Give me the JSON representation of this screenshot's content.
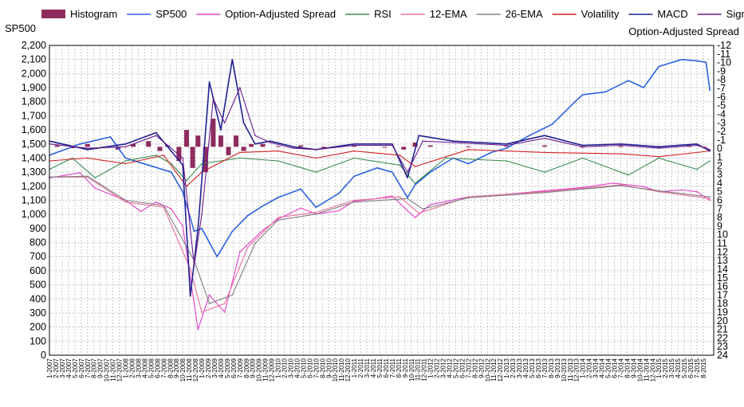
{
  "chart_data": {
    "type": "line",
    "title": "",
    "left_axis": {
      "title": "SP500",
      "ticks": [
        "2,200",
        "2,100",
        "2,000",
        "1,900",
        "1,800",
        "1,700",
        "1,600",
        "1,500",
        "1,400",
        "1,300",
        "1,200",
        "1,100",
        "1,000",
        "900",
        "800",
        "700",
        "600",
        "500",
        "400",
        "300",
        "200",
        "100",
        "0"
      ],
      "range": [
        0,
        2200
      ]
    },
    "right_axis": {
      "title": "Option-Adjusted Spread",
      "ticks": [
        "-12",
        "-11",
        "-10",
        "-9",
        "-8",
        "-7",
        "-6",
        "-5",
        "-4",
        "-3",
        "-2",
        "-1",
        "0",
        "1",
        "2",
        "3",
        "4",
        "5",
        "6",
        "7",
        "8",
        "9",
        "10",
        "11",
        "12",
        "13",
        "14",
        "15",
        "16",
        "17",
        "18",
        "19",
        "20",
        "21",
        "22",
        "23",
        "24"
      ],
      "range": [
        -12,
        24
      ],
      "inverted": true
    },
    "x_ticks": [
      "1-2007",
      "3-2007",
      "5-2007",
      "7-2007",
      "9-2007",
      "11-2007",
      "1-2008",
      "3-2008",
      "5-2008",
      "7-2008",
      "9-2008",
      "11-2008",
      "1-2009",
      "3-2009",
      "5-2009",
      "7-2009",
      "9-2009",
      "11-2009",
      "1-2010",
      "3-2010",
      "5-2010",
      "7-2010",
      "9-2010",
      "11-2010",
      "1-2011",
      "3-2011",
      "5-2011",
      "7-2011",
      "9-2011",
      "11-2011",
      "1-2012",
      "3-2012",
      "5-2012",
      "7-2012",
      "9-2012",
      "11-2012",
      "1-2013",
      "3-2013",
      "5-2013",
      "7-2013",
      "9-2013",
      "11-2013",
      "1-2014",
      "3-2014",
      "5-2014",
      "7-2014",
      "9-2014",
      "11-2014",
      "1-2015",
      "3-2015",
      "5-2015",
      "7-2015"
    ],
    "x_ticks_b": [
      "2-2007",
      "4-2007",
      "6-2007",
      "8-2007",
      "10-2007",
      "12-2007",
      "2-2008",
      "4-2008",
      "6-2008",
      "8-2008",
      "10-2008",
      "12-2008",
      "2-2009",
      "4-2009",
      "6-2009",
      "8-2009",
      "10-2009",
      "12-2009",
      "2-2010",
      "4-2010",
      "6-2010",
      "8-2010",
      "10-2010",
      "12-2010",
      "2-2011",
      "4-2011",
      "6-2011",
      "8-2011",
      "10-2011",
      "12-2011",
      "2-2012",
      "4-2012",
      "6-2012",
      "8-2012",
      "10-2012",
      "12-2012",
      "2-2013",
      "4-2013",
      "6-2013",
      "8-2013",
      "10-2013",
      "12-2013",
      "2-2014",
      "4-2014",
      "6-2014",
      "8-2014",
      "10-2014",
      "12-2014",
      "2-2015",
      "4-2015",
      "6-2015",
      "8-2015"
    ],
    "legend": [
      {
        "name": "Histogram",
        "color": "#8e2c5e",
        "kind": "bar"
      },
      {
        "name": "SP500",
        "color": "#2b62e0",
        "kind": "line"
      },
      {
        "name": "Option-Adjusted Spread",
        "color": "#e040c8",
        "kind": "line"
      },
      {
        "name": "RSI",
        "color": "#3a8a50",
        "kind": "line"
      },
      {
        "name": "12-EMA",
        "color": "#e6709a",
        "kind": "line"
      },
      {
        "name": "26-EMA",
        "color": "#808080",
        "kind": "line"
      },
      {
        "name": "Volatility",
        "color": "#d02020",
        "kind": "line"
      },
      {
        "name": "MACD",
        "color": "#202090",
        "kind": "line"
      },
      {
        "name": "Signal",
        "color": "#6a1a8a",
        "kind": "line"
      }
    ],
    "grid": true,
    "legend_position": "top",
    "series": [
      {
        "name": "SP500",
        "axis": "left",
        "x": [
          2007.0,
          2007.4,
          2007.8,
          2008.0,
          2008.3,
          2008.6,
          2008.75,
          2008.9,
          2009.0,
          2009.2,
          2009.4,
          2009.6,
          2009.8,
          2010.0,
          2010.3,
          2010.5,
          2010.8,
          2011.0,
          2011.3,
          2011.5,
          2011.7,
          2011.8,
          2012.0,
          2012.3,
          2012.5,
          2012.8,
          2013.0,
          2013.3,
          2013.6,
          2013.9,
          2014.0,
          2014.3,
          2014.6,
          2014.8,
          2015.0,
          2015.3,
          2015.5,
          2015.62,
          2015.67
        ],
        "y": [
          1420,
          1500,
          1550,
          1400,
          1350,
          1300,
          1160,
          880,
          900,
          700,
          880,
          990,
          1060,
          1120,
          1180,
          1050,
          1150,
          1270,
          1330,
          1300,
          1120,
          1210,
          1300,
          1400,
          1360,
          1440,
          1470,
          1560,
          1640,
          1800,
          1850,
          1870,
          1950,
          1900,
          2050,
          2100,
          2090,
          2080,
          1880
        ]
      },
      {
        "name": "Option-Adjusted Spread",
        "axis": "right",
        "x": [
          2007.0,
          2007.4,
          2007.6,
          2008.0,
          2008.2,
          2008.4,
          2008.6,
          2008.75,
          2008.85,
          2008.95,
          2009.1,
          2009.3,
          2009.5,
          2009.8,
          2010.0,
          2010.3,
          2010.5,
          2010.8,
          2011.0,
          2011.3,
          2011.5,
          2011.7,
          2011.8,
          2012.0,
          2012.5,
          2013.0,
          2013.5,
          2014.0,
          2014.4,
          2014.8,
          2015.0,
          2015.3,
          2015.5,
          2015.67
        ],
        "y": [
          3.4,
          2.8,
          4.6,
          6.0,
          7.3,
          6.2,
          7.0,
          9.0,
          15.0,
          21.0,
          17.0,
          19.0,
          12.0,
          9.5,
          8.2,
          6.9,
          7.6,
          7.2,
          6.1,
          5.8,
          5.5,
          7.2,
          8.0,
          6.5,
          5.6,
          5.3,
          4.9,
          4.5,
          4.0,
          4.4,
          5.0,
          4.8,
          5.0,
          6.0
        ]
      },
      {
        "name": "12-EMA",
        "axis": "right",
        "x": [
          2007.0,
          2007.5,
          2008.0,
          2008.5,
          2008.85,
          2009.0,
          2009.3,
          2009.6,
          2010.0,
          2010.5,
          2011.0,
          2011.6,
          2011.85,
          2012.5,
          2013.5,
          2014.5,
          2015.0,
          2015.67
        ],
        "y": [
          3.3,
          3.3,
          6.2,
          6.8,
          14.0,
          19.0,
          18.0,
          11.5,
          8.0,
          7.4,
          6.0,
          5.6,
          7.5,
          5.6,
          5.0,
          4.2,
          5.0,
          5.8
        ]
      },
      {
        "name": "26-EMA",
        "axis": "right",
        "x": [
          2007.0,
          2007.5,
          2008.0,
          2008.5,
          2008.9,
          2009.1,
          2009.4,
          2009.7,
          2010.0,
          2010.5,
          2011.0,
          2011.7,
          2011.9,
          2012.5,
          2013.5,
          2014.5,
          2015.0,
          2015.67
        ],
        "y": [
          3.3,
          3.2,
          6.0,
          6.6,
          13.0,
          18.0,
          17.0,
          11.0,
          8.3,
          7.6,
          6.2,
          5.8,
          7.0,
          5.7,
          5.1,
          4.3,
          4.9,
          5.6
        ]
      },
      {
        "name": "RSI",
        "axis": "left",
        "x": [
          2007.0,
          2007.3,
          2007.6,
          2008.0,
          2008.4,
          2008.6,
          2008.8,
          2009.0,
          2009.5,
          2010.0,
          2010.5,
          2011.0,
          2011.6,
          2011.8,
          2012.2,
          2013.0,
          2013.5,
          2014.0,
          2014.6,
          2015.0,
          2015.5,
          2015.67
        ],
        "y": [
          1320,
          1400,
          1260,
          1380,
          1420,
          1360,
          1240,
          1360,
          1400,
          1380,
          1300,
          1400,
          1350,
          1220,
          1400,
          1380,
          1300,
          1400,
          1280,
          1400,
          1320,
          1380
        ]
      },
      {
        "name": "Volatility",
        "axis": "left",
        "x": [
          2007.0,
          2007.5,
          2008.0,
          2008.5,
          2008.8,
          2009.0,
          2009.5,
          2010.0,
          2010.5,
          2011.0,
          2011.6,
          2011.8,
          2012.5,
          2013.5,
          2014.5,
          2015.0,
          2015.67
        ],
        "y": [
          1380,
          1400,
          1360,
          1420,
          1200,
          1300,
          1440,
          1450,
          1400,
          1450,
          1420,
          1340,
          1460,
          1440,
          1430,
          1410,
          1450
        ]
      },
      {
        "name": "MACD",
        "axis": "left",
        "x": [
          2007.0,
          2007.5,
          2008.0,
          2008.4,
          2008.75,
          2008.85,
          2008.95,
          2009.1,
          2009.25,
          2009.4,
          2009.55,
          2009.7,
          2009.9,
          2010.2,
          2010.5,
          2011.0,
          2011.5,
          2011.7,
          2011.85,
          2012.3,
          2013.0,
          2013.5,
          2014.0,
          2014.5,
          2015.0,
          2015.5,
          2015.67
        ],
        "y": [
          1520,
          1460,
          1500,
          1580,
          1350,
          420,
          900,
          1940,
          1600,
          2100,
          1650,
          1500,
          1520,
          1480,
          1460,
          1500,
          1500,
          1260,
          1560,
          1520,
          1500,
          1560,
          1490,
          1500,
          1480,
          1500,
          1450
        ]
      },
      {
        "name": "Signal",
        "axis": "left",
        "x": [
          2007.0,
          2007.5,
          2008.0,
          2008.4,
          2008.75,
          2008.9,
          2009.0,
          2009.15,
          2009.3,
          2009.5,
          2009.7,
          2009.9,
          2010.2,
          2010.5,
          2011.0,
          2011.5,
          2011.7,
          2011.9,
          2012.3,
          2013.0,
          2013.5,
          2014.0,
          2014.5,
          2015.0,
          2015.5,
          2015.67
        ],
        "y": [
          1500,
          1470,
          1480,
          1560,
          1400,
          640,
          1000,
          1820,
          1650,
          1900,
          1560,
          1510,
          1470,
          1460,
          1490,
          1490,
          1300,
          1520,
          1510,
          1490,
          1540,
          1480,
          1490,
          1470,
          1490,
          1460
        ]
      },
      {
        "name": "Histogram",
        "axis": "left",
        "kind": "bar",
        "baseline": 1480,
        "x": [
          2007.1,
          2007.3,
          2007.5,
          2007.7,
          2007.9,
          2008.1,
          2008.3,
          2008.45,
          2008.55,
          2008.7,
          2008.8,
          2008.88,
          2008.95,
          2009.05,
          2009.15,
          2009.25,
          2009.35,
          2009.45,
          2009.55,
          2009.65,
          2009.8,
          2010.0,
          2010.3,
          2010.6,
          2011.0,
          2011.4,
          2011.65,
          2011.8,
          2012.0,
          2012.5,
          2013.0,
          2013.5,
          2014.0,
          2014.5,
          2015.0,
          2015.4,
          2015.6
        ],
        "y": [
          1490,
          1470,
          1500,
          1470,
          1460,
          1500,
          1520,
          1450,
          1490,
          1380,
          1600,
          1330,
          1560,
          1300,
          1680,
          1560,
          1420,
          1560,
          1450,
          1500,
          1500,
          1485,
          1490,
          1470,
          1490,
          1480,
          1460,
          1510,
          1490,
          1482,
          1486,
          1490,
          1478,
          1484,
          1480,
          1490,
          1474
        ]
      }
    ]
  }
}
